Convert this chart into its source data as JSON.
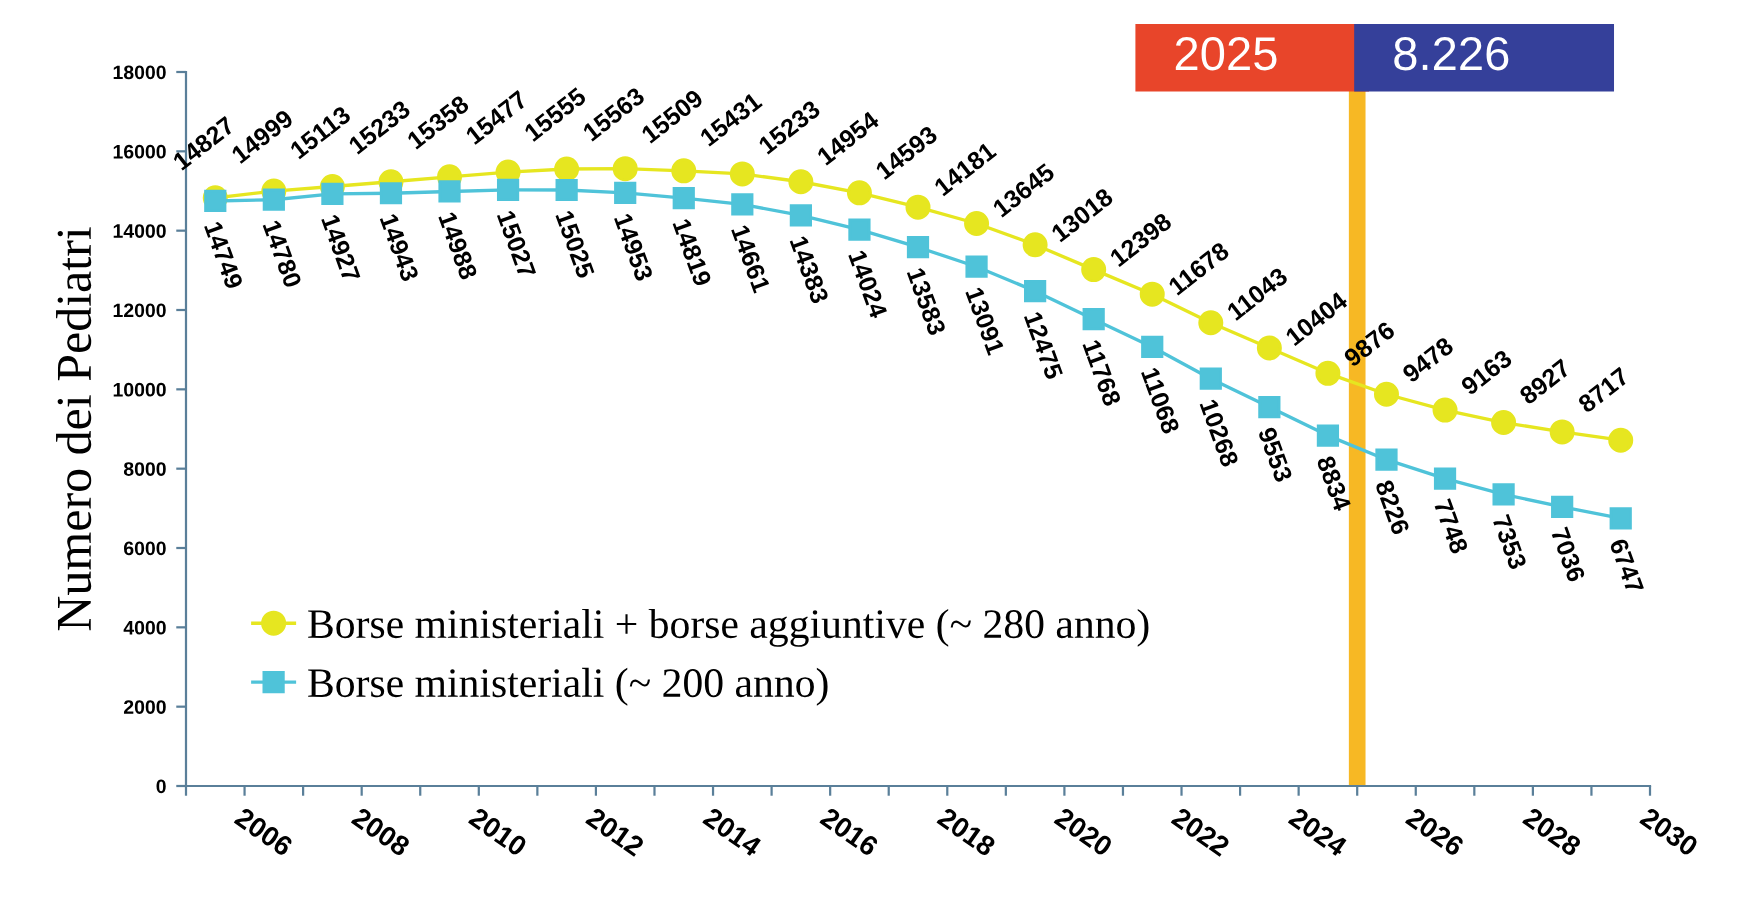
{
  "chart_data": {
    "type": "line",
    "ylabel": "Numero dei Pediatri",
    "x": [
      2005.5,
      2006.5,
      2007.5,
      2008.5,
      2009.5,
      2010.5,
      2011.5,
      2012.5,
      2013.5,
      2014.5,
      2015.5,
      2016.5,
      2017.5,
      2018.5,
      2019.5,
      2020.5,
      2021.5,
      2022.5,
      2023.5,
      2024.5,
      2025.5,
      2026.5,
      2027.5,
      2028.5,
      2029.5
    ],
    "series": [
      {
        "name": "Borse ministeriali + borse aggiuntive (~ 280 anno)",
        "color": "#e6e620",
        "marker": "circle",
        "values": [
          14827,
          14999,
          15113,
          15233,
          15358,
          15477,
          15555,
          15563,
          15509,
          15431,
          15233,
          14954,
          14593,
          14181,
          13645,
          13018,
          12398,
          11678,
          11043,
          10404,
          9876,
          9478,
          9163,
          8927,
          8717
        ]
      },
      {
        "name": "Borse ministeriali (~ 200 anno)",
        "color": "#4fc3d9",
        "marker": "square",
        "values": [
          14749,
          14780,
          14927,
          14943,
          14988,
          15027,
          15025,
          14953,
          14819,
          14661,
          14383,
          14024,
          13583,
          13091,
          12475,
          11768,
          11068,
          10268,
          9553,
          8834,
          8226,
          7748,
          7353,
          7036,
          6747
        ]
      }
    ],
    "data_labels": true,
    "xlim": [
      2005,
      2030
    ],
    "xticks": [
      {
        "value": 2005,
        "label": null
      },
      2006,
      {
        "value": 2007,
        "label": null
      },
      2008,
      {
        "value": 2009,
        "label": null
      },
      2010,
      {
        "value": 2011,
        "label": null
      },
      2012,
      {
        "value": 2013,
        "label": null
      },
      2014,
      {
        "value": 2015,
        "label": null
      },
      2016,
      {
        "value": 2017,
        "label": null
      },
      2018,
      {
        "value": 2019,
        "label": null
      },
      2020,
      {
        "value": 2021,
        "label": null
      },
      2022,
      {
        "value": 2023,
        "label": null
      },
      2024,
      {
        "value": 2025,
        "label": null
      },
      2026,
      {
        "value": 2027,
        "label": null
      },
      2028,
      {
        "value": 2029,
        "label": null
      },
      2030
    ],
    "ylim": [
      0,
      18000
    ],
    "yticks": [
      0,
      2000,
      4000,
      6000,
      8000,
      10000,
      12000,
      14000,
      16000,
      18000
    ],
    "ref_lines": [
      {
        "axis": "x",
        "value": 2025,
        "label": "2025",
        "color": "#f7b824"
      }
    ],
    "annotations": [
      "8.226"
    ],
    "legend": "bottom left",
    "grid": false
  }
}
